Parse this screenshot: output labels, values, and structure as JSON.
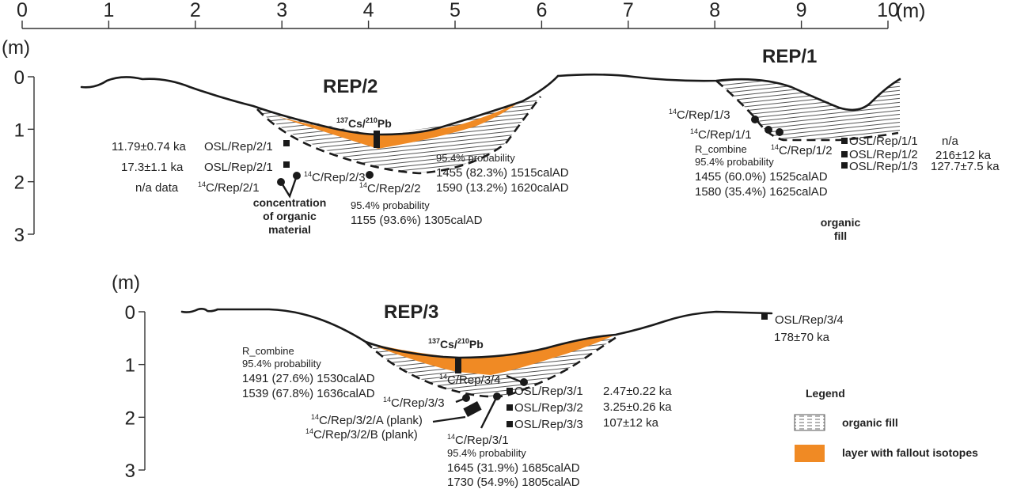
{
  "colors": {
    "fallout_layer": "#f08a24",
    "organic_fill_hatch": "#555555",
    "line": "#1a1a1a",
    "background": "#ffffff"
  },
  "horizontal_scale": {
    "ticks": [
      "0",
      "1",
      "2",
      "3",
      "4",
      "5",
      "6",
      "7",
      "8",
      "9",
      "10"
    ],
    "unit": "(m)"
  },
  "depth_axes": {
    "unit": "(m)",
    "ticks": [
      "0",
      "1",
      "2",
      "3"
    ]
  },
  "rep2": {
    "title": "REP/2",
    "isotope_label": {
      "pre1": "137",
      "main1": "Cs/",
      "pre2": "210",
      "main2": "Pb"
    },
    "osl_samples": [
      {
        "id": "OSL/Rep/2/1",
        "age": "11.79±0.74 ka"
      },
      {
        "id": "OSL/Rep/2/1",
        "age": "17.3±1.1 ka"
      }
    ],
    "c14_rep2_1": {
      "sup": "14",
      "id": "C/Rep/2/1",
      "note": "n/a data"
    },
    "c14_rep2_3": {
      "sup": "14",
      "id": "C/Rep/2/3"
    },
    "c14_rep2_2": {
      "sup": "14",
      "id": "C/Rep/2/2",
      "probability": "95.4% probability",
      "ranges": [
        "1155 (93.6%) 1305calAD"
      ]
    },
    "c14_rep2_3_dates": {
      "probability": "95.4% probability",
      "ranges": [
        "1455 (82.3%) 1515calAD",
        "1590 (13.2%) 1620calAD"
      ]
    },
    "concentration_note": [
      "concentration",
      "of organic",
      "material"
    ]
  },
  "rep1": {
    "title": "REP/1",
    "c14_rep1_3": {
      "sup": "14",
      "id": "C/Rep/1/3"
    },
    "c14_rep1_1": {
      "sup": "14",
      "id": "C/Rep/1/1"
    },
    "c14_rep1_2": {
      "sup": "14",
      "id": "C/Rep/1/2"
    },
    "combine": {
      "method": "R_combine",
      "probability": "95.4% probability",
      "ranges": [
        "1455 (60.0%) 1525calAD",
        "1580 (35.4%) 1625calAD"
      ]
    },
    "osl_samples": [
      {
        "id": "OSL/Rep/1/1",
        "age": "n/a"
      },
      {
        "id": "OSL/Rep/1/2",
        "age": "216±12 ka"
      },
      {
        "id": "OSL/Rep/1/3",
        "age": "127.7±7.5 ka"
      }
    ],
    "fill_note": [
      "organic",
      "fill"
    ]
  },
  "rep3": {
    "title": "REP/3",
    "isotope_label": {
      "pre1": "137",
      "main1": "Cs/",
      "pre2": "210",
      "main2": "Pb"
    },
    "combine": {
      "method": "R_combine",
      "probability": "95.4% probability",
      "ranges": [
        "1491 (27.6%) 1530calAD",
        "1539 (67.8%) 1636calAD"
      ]
    },
    "c14_rep3_4": {
      "sup": "14",
      "id": "C/Rep/3/4"
    },
    "c14_rep3_3": {
      "sup": "14",
      "id": "C/Rep/3/3"
    },
    "c14_rep3_2a": {
      "sup": "14",
      "id": "C/Rep/3/2/A (plank)"
    },
    "c14_rep3_2b": {
      "sup": "14",
      "id": "C/Rep/3/2/B (plank)"
    },
    "c14_rep3_1": {
      "sup": "14",
      "id": "C/Rep/3/1",
      "probability": "95.4% probability",
      "ranges": [
        "1645 (31.9%) 1685calAD",
        "1730 (54.9%) 1805calAD"
      ]
    },
    "osl_samples": [
      {
        "id": "OSL/Rep/3/1",
        "age": "2.47±0.22 ka"
      },
      {
        "id": "OSL/Rep/3/2",
        "age": "3.25±0.26 ka"
      },
      {
        "id": "OSL/Rep/3/3",
        "age": "107±12 ka"
      },
      {
        "id": "OSL/Rep/3/4",
        "age": "178±70 ka"
      }
    ]
  },
  "legend": {
    "title": "Legend",
    "items": [
      {
        "label": "organic fill"
      },
      {
        "label": "layer with fallout isotopes"
      }
    ]
  }
}
